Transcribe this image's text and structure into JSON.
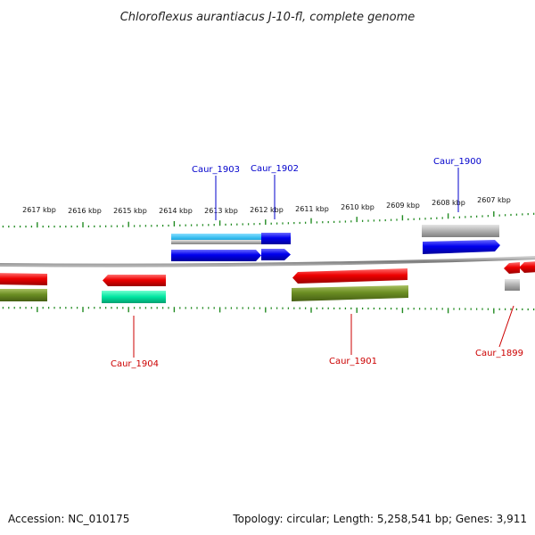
{
  "title": "Chloroflexus aurantiacus J-10-fl, complete genome",
  "footer": {
    "accession": "Accession: NC_010175",
    "summary": "Topology: circular; Length: 5,258,541 bp; Genes: 3,911"
  },
  "tick_labels": [
    "2617 kbp",
    "2616 kbp",
    "2615 kbp",
    "2614 kbp",
    "2613 kbp",
    "2612 kbp",
    "2611 kbp",
    "2610 kbp",
    "2609 kbp",
    "2608 kbp",
    "2607 kbp"
  ],
  "gene_labels": {
    "caur_1903": "Caur_1903",
    "caur_1902": "Caur_1902",
    "caur_1900": "Caur_1900",
    "caur_1904": "Caur_1904",
    "caur_1901": "Caur_1901",
    "caur_1899": "Caur_1899"
  },
  "colors": {
    "forward_cds": "#0000ee",
    "reverse_cds": "#ee0000",
    "forward_label": "#0000cc",
    "reverse_label": "#cc0000",
    "backbone": "#888888",
    "tick": "#228b22",
    "olive": "#6b8e23",
    "teal": "#00e5a0",
    "cyan": "#33bbee",
    "gray": "#b0b0b0"
  }
}
